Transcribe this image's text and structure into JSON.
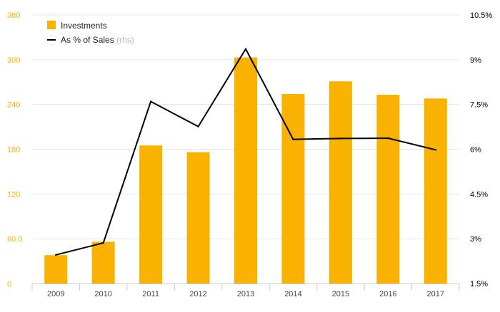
{
  "chart_data": {
    "type": "bar",
    "categories": [
      "2009",
      "2010",
      "2011",
      "2012",
      "2013",
      "2014",
      "2015",
      "2016",
      "2017"
    ],
    "series": [
      {
        "name": "Investments",
        "type": "bar",
        "axis": "left",
        "color": "#F9B200",
        "values": [
          38,
          56,
          185,
          176,
          303,
          254,
          271,
          253,
          248
        ]
      },
      {
        "name": "As % of Sales",
        "name_suffix": "(rhs)",
        "type": "line",
        "axis": "right",
        "color": "#000000",
        "values": [
          2.46,
          2.86,
          7.6,
          6.76,
          9.36,
          6.33,
          6.36,
          6.37,
          5.98
        ]
      }
    ],
    "left_axis": {
      "ylim": [
        0,
        360
      ],
      "ticks": [
        0,
        60,
        120,
        180,
        240,
        300,
        360
      ],
      "tick_labels": [
        "0",
        "60.0",
        "120",
        "180",
        "240",
        "300",
        "360"
      ],
      "color": "#F9B200"
    },
    "right_axis": {
      "ylim": [
        1.5,
        10.5
      ],
      "ticks": [
        1.5,
        3,
        4.5,
        6,
        7.5,
        9,
        10.5
      ],
      "tick_labels": [
        "1.5%",
        "3%",
        "4.5%",
        "6%",
        "7.5%",
        "9%",
        "10.5%"
      ]
    },
    "legend": {
      "placement": "top-left",
      "items": [
        "Investments",
        "As % of Sales"
      ]
    },
    "grid": true,
    "colors": {
      "grid": "#e6e6e6",
      "x_axis": "#cccccc",
      "x_tick_label": "#444444",
      "right_tick_label": "#000000",
      "rhs_note": "#bbbbbb"
    }
  }
}
